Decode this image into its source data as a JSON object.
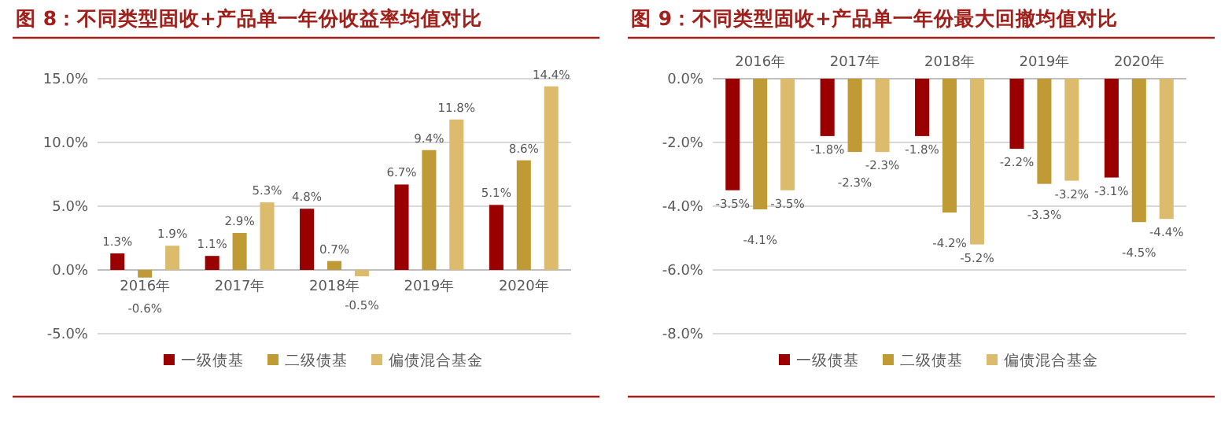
{
  "chart_data": [
    {
      "type": "bar",
      "title": "图 8：不同类型固收+产品单一年份收益率均值对比",
      "categories": [
        "2016年",
        "2017年",
        "2018年",
        "2019年",
        "2020年"
      ],
      "series": [
        {
          "name": "一级债基",
          "color": "#9b0000",
          "values": [
            1.3,
            1.1,
            4.8,
            6.7,
            5.1
          ],
          "value_labels": [
            "1.3%",
            "1.1%",
            "4.8%",
            "6.7%",
            "5.1%"
          ]
        },
        {
          "name": "二级债基",
          "color": "#c09a35",
          "values": [
            -0.6,
            2.9,
            0.7,
            9.4,
            8.6
          ],
          "value_labels": [
            "-0.6%",
            "2.9%",
            "0.7%",
            "9.4%",
            "8.6%"
          ]
        },
        {
          "name": "偏债混合基金",
          "color": "#dcbc6c",
          "values": [
            1.9,
            5.3,
            -0.5,
            11.8,
            14.4
          ],
          "value_labels": [
            "1.9%",
            "5.3%",
            "-0.5%",
            "11.8%",
            "14.4%"
          ]
        }
      ],
      "ylim": [
        -5,
        15
      ],
      "yticks": [
        {
          "value": -5,
          "label": "-5.0%"
        },
        {
          "value": 0,
          "label": "0.0%"
        },
        {
          "value": 5,
          "label": "5.0%"
        },
        {
          "value": 10,
          "label": "10.0%"
        },
        {
          "value": 15,
          "label": "15.0%"
        }
      ],
      "grid": "y",
      "legend": "bottom"
    },
    {
      "type": "bar",
      "title": "图 9：不同类型固收+产品单一年份最大回撤均值对比",
      "categories": [
        "2016年",
        "2017年",
        "2018年",
        "2019年",
        "2020年"
      ],
      "series": [
        {
          "name": "一级债基",
          "color": "#9b0000",
          "values": [
            -3.5,
            -1.8,
            -1.8,
            -2.2,
            -3.1
          ],
          "value_labels": [
            "-3.5%",
            "-1.8%",
            "-1.8%",
            "-2.2%",
            "-3.1%"
          ]
        },
        {
          "name": "二级债基",
          "color": "#c09a35",
          "values": [
            -4.1,
            -2.3,
            -4.2,
            -3.3,
            -4.5
          ],
          "value_labels": [
            "-4.1%",
            "-2.3%",
            "-4.2%",
            "-3.3%",
            "-4.5%"
          ]
        },
        {
          "name": "偏债混合基金",
          "color": "#dcbc6c",
          "values": [
            -3.5,
            -2.3,
            -5.2,
            -3.2,
            -4.4
          ],
          "value_labels": [
            "-3.5%",
            "-2.3%",
            "-5.2%",
            "-3.2%",
            "-4.4%"
          ]
        }
      ],
      "ylim": [
        -8,
        0
      ],
      "yticks": [
        {
          "value": -8,
          "label": "-8.0%"
        },
        {
          "value": -6,
          "label": "-6.0%"
        },
        {
          "value": -4,
          "label": "-4.0%"
        },
        {
          "value": -2,
          "label": "-2.0%"
        },
        {
          "value": 0,
          "label": "0.0%"
        }
      ],
      "grid": "y",
      "legend": "bottom"
    }
  ]
}
